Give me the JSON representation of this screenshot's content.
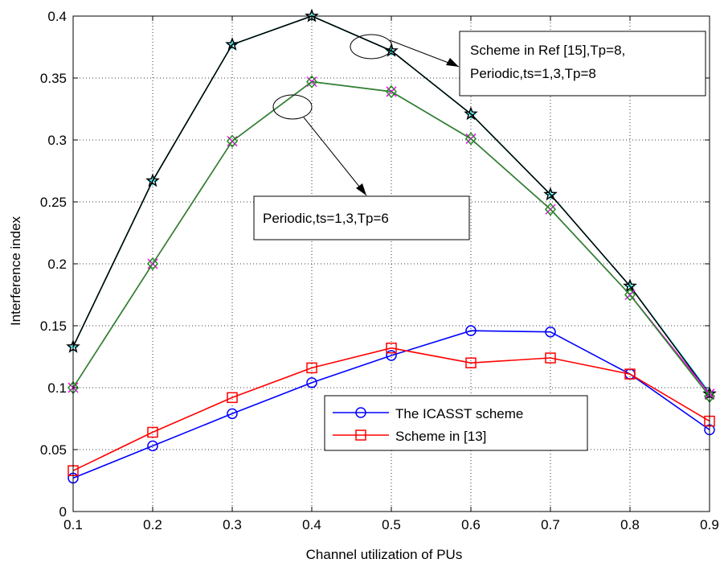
{
  "chart_data": {
    "type": "line",
    "xlabel": "Channel utilization of PUs",
    "ylabel": "Interference index",
    "xlim": [
      0.1,
      0.9
    ],
    "ylim": [
      0,
      0.4
    ],
    "xticks": [
      0.1,
      0.2,
      0.3,
      0.4,
      0.5,
      0.6,
      0.7,
      0.8,
      0.9
    ],
    "yticks": [
      0,
      0.05,
      0.1,
      0.15,
      0.2,
      0.25,
      0.3,
      0.35,
      0.4
    ],
    "xtick_labels": [
      "0.1",
      "0.2",
      "0.3",
      "0.4",
      "0.5",
      "0.6",
      "0.7",
      "0.8",
      "0.9"
    ],
    "ytick_labels": [
      "0",
      "0.05",
      "0.1",
      "0.15",
      "0.2",
      "0.25",
      "0.3",
      "0.35",
      "0.4"
    ],
    "grid": true,
    "x": [
      0.1,
      0.2,
      0.3,
      0.4,
      0.5,
      0.6,
      0.7,
      0.8,
      0.9
    ],
    "series": [
      {
        "name": "The ICASST scheme",
        "color": "#0000ff",
        "marker": "circle",
        "values": [
          0.027,
          0.053,
          0.079,
          0.104,
          0.126,
          0.146,
          0.145,
          0.111,
          0.066
        ]
      },
      {
        "name": "Scheme in [13]",
        "color": "#ff0000",
        "marker": "square",
        "values": [
          0.033,
          0.064,
          0.092,
          0.116,
          0.132,
          0.12,
          0.124,
          0.111,
          0.073
        ]
      },
      {
        "name": "Scheme in Ref [15],Tp=8",
        "color": "#00ffff",
        "marker": "plus",
        "values": [
          0.133,
          0.267,
          0.377,
          0.4,
          0.372,
          0.321,
          0.256,
          0.182,
          0.096
        ]
      },
      {
        "name": "Periodic,ts=1,3,Tp=8",
        "color": "#000000",
        "marker": "star",
        "values": [
          0.133,
          0.267,
          0.377,
          0.4,
          0.372,
          0.321,
          0.256,
          0.182,
          0.095
        ]
      },
      {
        "name": "",
        "color": "#ff00ff",
        "marker": "x",
        "values": [
          0.1,
          0.2,
          0.299,
          0.347,
          0.339,
          0.301,
          0.244,
          0.175,
          0.095
        ]
      },
      {
        "name": "Periodic,ts=1,3,Tp=6",
        "color": "#228b22",
        "marker": "diamond",
        "values": [
          0.1,
          0.2,
          0.299,
          0.347,
          0.339,
          0.301,
          0.244,
          0.175,
          0.093
        ]
      }
    ],
    "legend": {
      "placement": "bottom-center",
      "entries": [
        "The ICASST scheme",
        "Scheme in [13]"
      ]
    },
    "annotations": [
      {
        "lines": [
          "Scheme in Ref [15],Tp=8,",
          "Periodic,ts=1,3,Tp=8"
        ],
        "points_to_x": 0.45,
        "points_to_y": 0.39
      },
      {
        "lines": [
          "Periodic,ts=1,3,Tp=6"
        ],
        "points_to_x": 0.36,
        "points_to_y": 0.337
      }
    ]
  }
}
